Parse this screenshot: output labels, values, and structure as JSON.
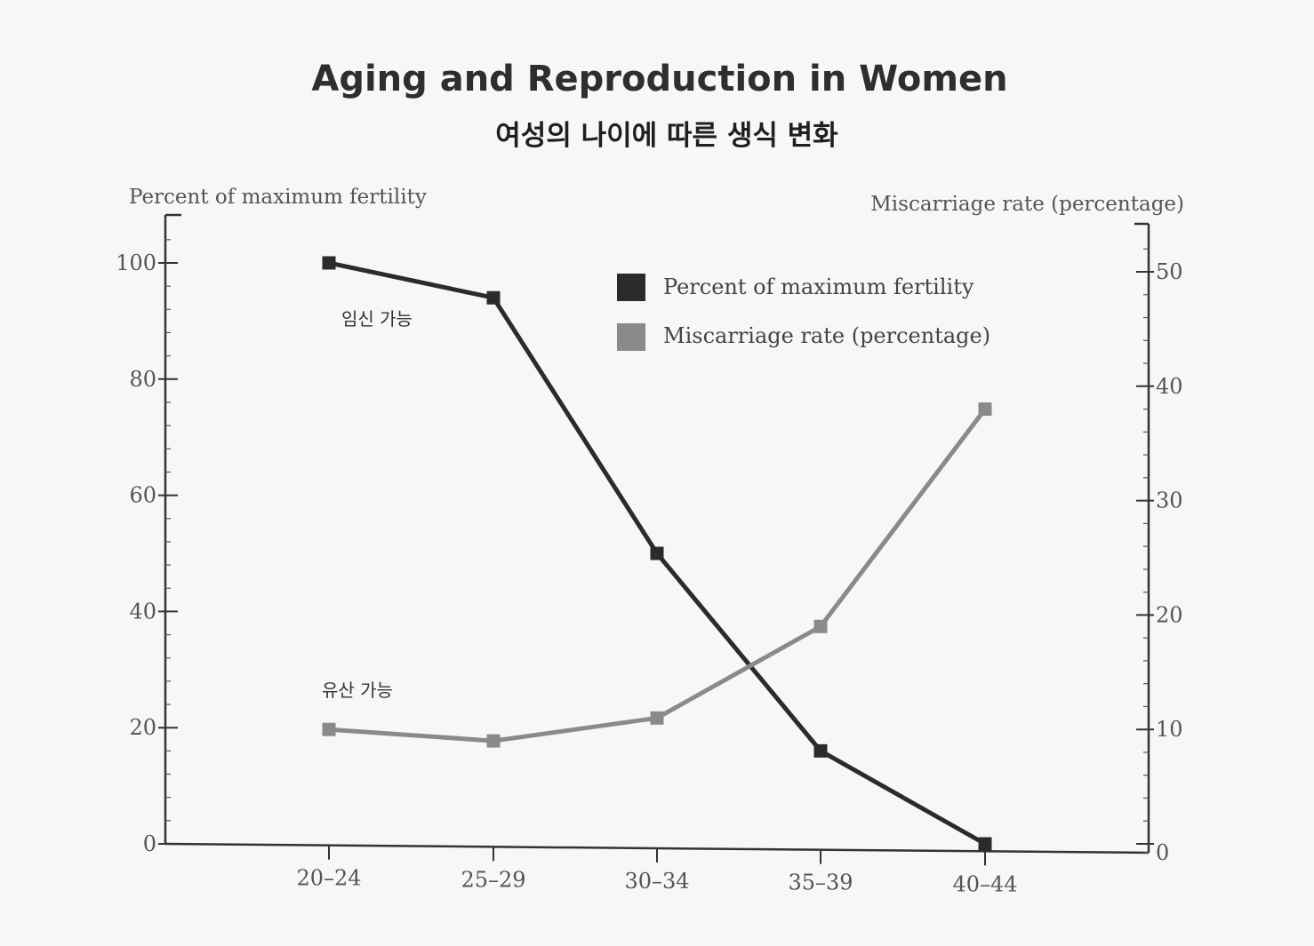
{
  "chart_data": {
    "type": "line",
    "title": "Aging and Reproduction in Women",
    "subtitle": "여성의 나이에 따른 생식 변화",
    "categories": [
      "20–24",
      "25–29",
      "30–34",
      "35–39",
      "40–44"
    ],
    "left_axis": {
      "label": "Percent of maximum fertility",
      "ylim": [
        0,
        105
      ],
      "ticks": [
        0,
        20,
        40,
        60,
        80,
        100
      ]
    },
    "right_axis": {
      "label": "Miscarriage rate (percentage)",
      "ylim": [
        0,
        53
      ],
      "ticks": [
        0,
        10,
        20,
        30,
        40,
        50
      ]
    },
    "series": [
      {
        "name": "Percent of maximum fertility",
        "axis": "left",
        "color": "#2b2b2b",
        "values": [
          100,
          94,
          50,
          16,
          0
        ]
      },
      {
        "name": "Miscarriage rate (percentage)",
        "axis": "right",
        "color": "#8a8a8a",
        "values": [
          10,
          9,
          11,
          19,
          38
        ]
      }
    ],
    "annotations": [
      {
        "text": "임신 가능",
        "series": 0
      },
      {
        "text": "유산 가능",
        "series": 1
      }
    ],
    "legend_position": "top-center",
    "grid": false
  }
}
